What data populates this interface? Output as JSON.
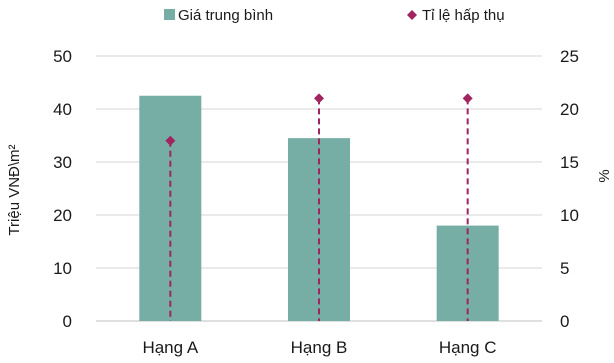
{
  "chart_data": {
    "type": "bar",
    "categories": [
      "Hạng A",
      "Hạng B",
      "Hạng C"
    ],
    "series": [
      {
        "name": "Giá trung bình",
        "kind": "bar",
        "axis": "left",
        "color": "#76ADA4",
        "values": [
          42.5,
          34.5,
          18
        ]
      },
      {
        "name": "Tỉ lệ hấp thụ",
        "kind": "marker",
        "axis": "right",
        "color": "#A0245F",
        "values": [
          17,
          21,
          21
        ]
      }
    ],
    "ylabel": "Triệu VNĐ\\m²",
    "y2label": "%",
    "ylim": [
      0,
      50
    ],
    "y2lim": [
      0,
      25
    ],
    "yticks": [
      0,
      10,
      20,
      30,
      40,
      50
    ],
    "y2ticks": [
      0,
      5,
      10,
      15,
      20,
      25
    ],
    "grid": true,
    "legend": "top"
  }
}
